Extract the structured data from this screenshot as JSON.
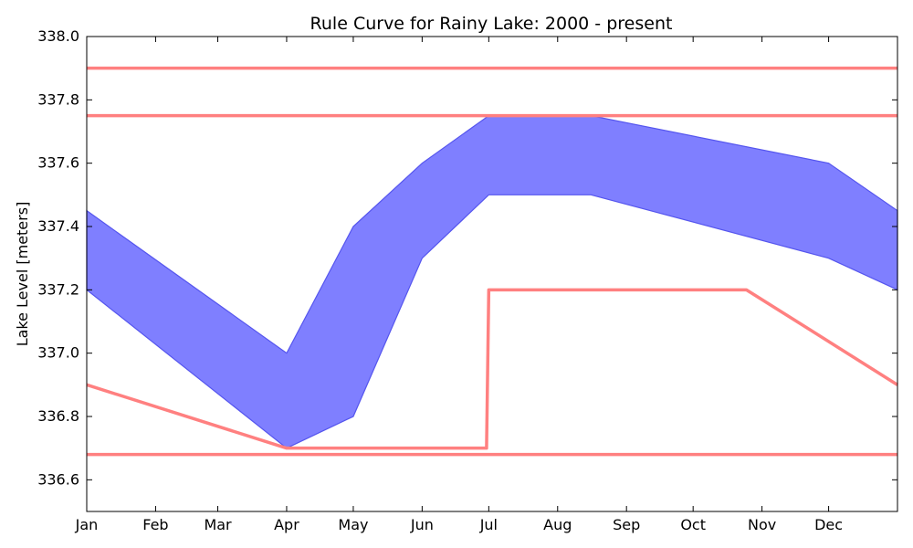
{
  "chart_data": {
    "type": "area",
    "title": "Rule Curve for Rainy Lake: 2000 - present",
    "xlabel": "",
    "ylabel": "Lake Level [meters]",
    "xlim": [
      0,
      365
    ],
    "ylim": [
      336.5,
      338.0
    ],
    "grid": false,
    "x_ticks": [
      {
        "day": 0,
        "label": "Jan"
      },
      {
        "day": 31,
        "label": "Feb"
      },
      {
        "day": 59,
        "label": "Mar"
      },
      {
        "day": 90,
        "label": "Apr"
      },
      {
        "day": 120,
        "label": "May"
      },
      {
        "day": 151,
        "label": "Jun"
      },
      {
        "day": 181,
        "label": "Jul"
      },
      {
        "day": 212,
        "label": "Aug"
      },
      {
        "day": 243,
        "label": "Sep"
      },
      {
        "day": 273,
        "label": "Oct"
      },
      {
        "day": 304,
        "label": "Nov"
      },
      {
        "day": 334,
        "label": "Dec"
      }
    ],
    "y_ticks": [
      "336.6",
      "336.8",
      "337.0",
      "337.2",
      "337.4",
      "337.6",
      "337.8",
      "338.0"
    ],
    "band": {
      "color": "#7f7fff",
      "edge_color": "#5555ee",
      "x": [
        0,
        90,
        120,
        151,
        181,
        227,
        334,
        365
      ],
      "upper": [
        337.45,
        337.0,
        337.4,
        337.6,
        337.75,
        337.75,
        337.6,
        337.45
      ],
      "lower": [
        337.2,
        336.7,
        336.8,
        337.3,
        337.5,
        337.5,
        337.3,
        337.2
      ]
    },
    "lines": [
      {
        "color": "#ff8080",
        "x": [
          0,
          365
        ],
        "y": [
          337.9,
          337.9
        ]
      },
      {
        "color": "#ff8080",
        "x": [
          0,
          365
        ],
        "y": [
          337.75,
          337.75
        ]
      },
      {
        "color": "#ff8080",
        "x": [
          0,
          365
        ],
        "y": [
          336.68,
          336.68
        ]
      },
      {
        "color": "#ff8080",
        "x": [
          0,
          90,
          180,
          181,
          297,
          365
        ],
        "y": [
          336.9,
          336.7,
          336.7,
          337.2,
          337.2,
          336.9
        ]
      }
    ]
  }
}
